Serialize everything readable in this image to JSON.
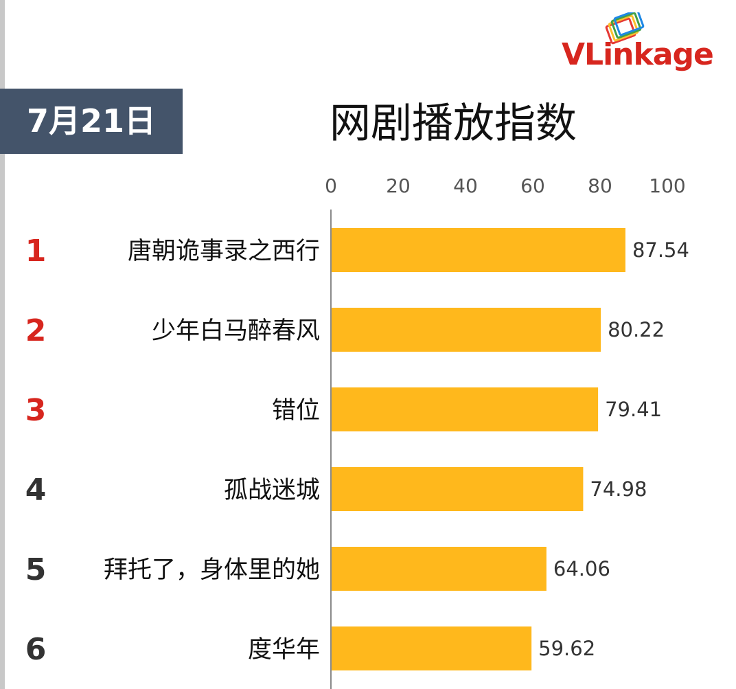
{
  "date_badge": "7月21日",
  "logo": {
    "text_v": "VL",
    "text_rest": "inkage",
    "colors": [
      "#e53935",
      "#fbc02d",
      "#43a047",
      "#1e88e5"
    ]
  },
  "chart_data": {
    "type": "bar",
    "orientation": "horizontal",
    "title": "网剧播放指数",
    "xlim": [
      0,
      100
    ],
    "xticks": [
      0,
      20,
      40,
      60,
      80,
      100
    ],
    "grid": false,
    "bar_color": "#ffb81c",
    "ranks": [
      "1",
      "2",
      "3",
      "4",
      "5",
      "6"
    ],
    "rank_colors": [
      "#d7261e",
      "#d7261e",
      "#d7261e",
      "#333333",
      "#333333",
      "#333333"
    ],
    "categories": [
      "唐朝诡事录之西行",
      "少年白马醉春风",
      "错位",
      "孤战迷城",
      "拜托了，身体里的她",
      "度华年"
    ],
    "values": [
      87.54,
      80.22,
      79.41,
      74.98,
      64.06,
      59.62
    ],
    "value_labels": [
      "87.54",
      "80.22",
      "79.41",
      "74.98",
      "64.06",
      "59.62"
    ]
  }
}
